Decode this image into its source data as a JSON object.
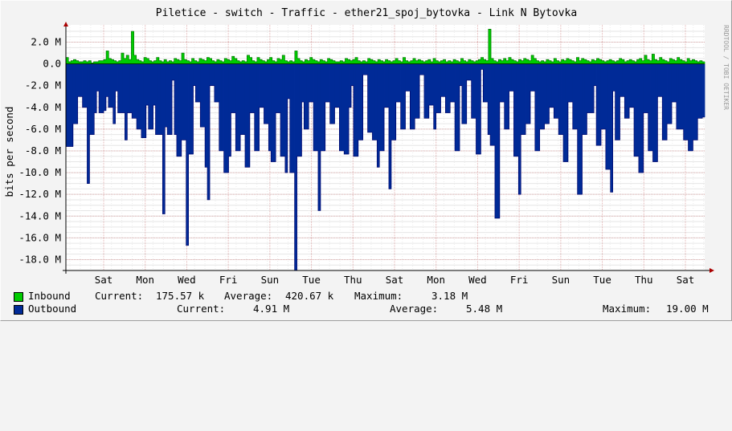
{
  "chart_data": {
    "type": "area",
    "title": "Piletice - switch - Traffic - ether21_spoj_bytovka - Link N Bytovka",
    "ylabel": "bits per second",
    "watermark": "RRDTOOL / TOBI OETIKER",
    "ylim": [
      -19000000,
      3000000
    ],
    "y_ticks": [
      {
        "value": 2000000,
        "label": "2.0 M"
      },
      {
        "value": 0,
        "label": "0.0"
      },
      {
        "value": -2000000,
        "label": "-2.0 M"
      },
      {
        "value": -4000000,
        "label": "-4.0 M"
      },
      {
        "value": -6000000,
        "label": "-6.0 M"
      },
      {
        "value": -8000000,
        "label": "-8.0 M"
      },
      {
        "value": -10000000,
        "label": "-10.0 M"
      },
      {
        "value": -12000000,
        "label": "-12.0 M"
      },
      {
        "value": -14000000,
        "label": "-14.0 M"
      },
      {
        "value": -16000000,
        "label": "-16.0 M"
      },
      {
        "value": -18000000,
        "label": "-18.0 M"
      }
    ],
    "x_ticks": [
      "Sat",
      "Mon",
      "Wed",
      "Fri",
      "Sun",
      "Tue",
      "Thu",
      "Sat",
      "Mon",
      "Wed",
      "Fri",
      "Sun",
      "Tue",
      "Thu",
      "Sat"
    ],
    "grid": true,
    "series": [
      {
        "name": "Inbound",
        "color": "#00cc00",
        "outline": "#006600",
        "values": [
          0.6,
          0.2,
          0.3,
          0.4,
          0.3,
          0.2,
          0.2,
          0.3,
          0.2,
          0.3,
          0.1,
          0.2,
          0.2,
          0.3,
          0.3,
          0.4,
          1.2,
          0.5,
          0.4,
          0.3,
          0.2,
          0.3,
          1.0,
          0.5,
          0.8,
          0.4,
          3.0,
          0.8,
          0.4,
          0.3,
          0.2,
          0.6,
          0.5,
          0.3,
          0.2,
          0.3,
          0.6,
          0.3,
          0.2,
          0.4,
          0.2,
          0.3,
          0.2,
          0.5,
          0.4,
          0.3,
          1.0,
          0.4,
          0.3,
          0.2,
          0.5,
          0.3,
          0.2,
          0.5,
          0.4,
          0.3,
          0.6,
          0.5,
          0.3,
          0.2,
          0.4,
          0.3,
          0.2,
          0.5,
          0.4,
          0.3,
          0.7,
          0.5,
          0.3,
          0.2,
          0.3,
          0.2,
          0.8,
          0.6,
          0.3,
          0.2,
          0.6,
          0.4,
          0.3,
          0.2,
          0.4,
          0.6,
          0.3,
          0.2,
          0.5,
          0.4,
          0.8,
          0.3,
          0.2,
          0.3,
          0.2,
          1.2,
          0.5,
          0.3,
          0.2,
          0.4,
          0.3,
          0.6,
          0.4,
          0.3,
          0.2,
          0.4,
          0.3,
          0.2,
          0.5,
          0.4,
          0.3,
          0.2,
          0.2,
          0.3,
          0.2,
          0.5,
          0.4,
          0.3,
          0.4,
          0.6,
          0.3,
          0.2,
          0.3,
          0.2,
          0.5,
          0.4,
          0.3,
          0.2,
          0.4,
          0.3,
          0.2,
          0.4,
          0.3,
          0.2,
          0.3,
          0.5,
          0.3,
          0.2,
          0.6,
          0.3,
          0.2,
          0.3,
          0.5,
          0.3,
          0.4,
          0.3,
          0.2,
          0.3,
          0.4,
          0.2,
          0.5,
          0.3,
          0.2,
          0.3,
          0.4,
          0.2,
          0.3,
          0.2,
          0.4,
          0.3,
          0.2,
          0.5,
          0.3,
          0.2,
          0.4,
          0.3,
          0.2,
          0.3,
          0.4,
          0.6,
          0.4,
          0.3,
          3.2,
          0.5,
          0.3,
          0.2,
          0.4,
          0.3,
          0.5,
          0.3,
          0.6,
          0.4,
          0.3,
          0.2,
          0.4,
          0.3,
          0.5,
          0.4,
          0.3,
          0.8,
          0.5,
          0.3,
          0.2,
          0.3,
          0.2,
          0.4,
          0.3,
          0.2,
          0.5,
          0.3,
          0.2,
          0.4,
          0.3,
          0.5,
          0.4,
          0.3,
          0.2,
          0.6,
          0.3,
          0.5,
          0.4,
          0.3,
          0.2,
          0.4,
          0.3,
          0.5,
          0.4,
          0.3,
          0.2,
          0.3,
          0.4,
          0.3,
          0.2,
          0.3,
          0.5,
          0.4,
          0.2,
          0.3,
          0.4,
          0.3,
          0.2,
          0.4,
          0.5,
          0.3,
          0.8,
          0.4,
          0.3,
          0.9,
          0.4,
          0.3,
          0.6,
          0.4,
          0.3,
          0.2,
          0.5,
          0.4,
          0.3,
          0.6,
          0.4,
          0.3,
          0.2,
          0.5,
          0.3,
          0.4,
          0.3,
          0.2,
          0.3,
          0.2
        ]
      },
      {
        "name": "Outbound",
        "color": "#002a97",
        "outline": "#000066",
        "values": [
          -7.6,
          -7.6,
          -7.6,
          -5.5,
          -5.5,
          -3.0,
          -3.0,
          -4.0,
          -4.0,
          -11.0,
          -6.5,
          -6.5,
          -4.5,
          -2.5,
          -4.5,
          -4.5,
          -4.3,
          -3.0,
          -4.0,
          -4.0,
          -5.5,
          -2.5,
          -4.5,
          -4.5,
          -4.5,
          -7.0,
          -4.5,
          -4.5,
          -5.0,
          -5.0,
          -6.0,
          -6.0,
          -6.8,
          -6.8,
          -3.8,
          -6.0,
          -6.0,
          -3.8,
          -6.5,
          -6.5,
          -6.5,
          -13.8,
          -5.8,
          -6.5,
          -6.5,
          -1.5,
          -6.5,
          -8.5,
          -8.5,
          -7.0,
          -7.0,
          -16.7,
          -8.3,
          -8.3,
          -2.0,
          -3.5,
          -3.5,
          -5.8,
          -5.8,
          -9.5,
          -12.5,
          -2.0,
          -2.0,
          -3.5,
          -3.5,
          -8.0,
          -8.0,
          -10.0,
          -10.0,
          -8.5,
          -4.5,
          -4.5,
          -8.0,
          -8.0,
          -6.5,
          -6.5,
          -9.5,
          -9.5,
          -4.5,
          -4.5,
          -8.0,
          -8.0,
          -4.0,
          -4.0,
          -5.5,
          -5.5,
          -8.0,
          -9.0,
          -9.0,
          -4.5,
          -4.5,
          -8.5,
          -8.5,
          -10.0,
          -3.2,
          -10.0,
          -10.0,
          -19.0,
          -8.5,
          -8.5,
          -3.5,
          -6.0,
          -6.0,
          -3.5,
          -3.5,
          -8.0,
          -8.0,
          -13.5,
          -8.0,
          -8.0,
          -3.5,
          -3.5,
          -5.5,
          -5.5,
          -4.0,
          -4.0,
          -8.0,
          -8.0,
          -8.3,
          -8.3,
          -4.0,
          -2.0,
          -8.5,
          -8.5,
          -7.0,
          -7.0,
          -1.0,
          -1.0,
          -6.3,
          -6.3,
          -7.0,
          -7.0,
          -9.5,
          -8.0,
          -8.0,
          -4.0,
          -4.0,
          -11.5,
          -7.0,
          -7.0,
          -3.5,
          -3.5,
          -6.0,
          -6.0,
          -2.5,
          -2.5,
          -6.0,
          -6.0,
          -5.0,
          -5.0,
          -1.0,
          -1.0,
          -5.0,
          -5.0,
          -3.8,
          -3.8,
          -6.0,
          -4.5,
          -4.5,
          -3.0,
          -3.0,
          -4.5,
          -4.5,
          -3.5,
          -3.5,
          -8.0,
          -8.0,
          -2.0,
          -5.5,
          -5.5,
          -1.5,
          -1.5,
          -5.0,
          -5.0,
          -8.3,
          -8.3,
          -0.5,
          -3.5,
          -3.5,
          -6.5,
          -7.5,
          -7.5,
          -14.2,
          -14.2,
          -3.5,
          -3.5,
          -6.0,
          -6.0,
          -2.5,
          -2.5,
          -8.5,
          -8.5,
          -12.0,
          -6.5,
          -6.5,
          -5.5,
          -5.5,
          -2.5,
          -2.5,
          -8.0,
          -8.0,
          -6.0,
          -6.0,
          -5.5,
          -5.5,
          -4.0,
          -4.0,
          -5.0,
          -5.0,
          -6.5,
          -6.5,
          -9.0,
          -9.0,
          -3.5,
          -3.5,
          -6.0,
          -6.0,
          -12.0,
          -12.0,
          -6.5,
          -6.5,
          -4.5,
          -4.5,
          -4.5,
          -2.0,
          -7.5,
          -7.5,
          -6.0,
          -6.0,
          -9.7,
          -9.7,
          -11.8,
          -2.5,
          -7.0,
          -7.0,
          -3.0,
          -3.0,
          -5.0,
          -5.0,
          -4.0,
          -4.0,
          -8.5,
          -8.5,
          -10.0,
          -10.0,
          -4.5,
          -4.5,
          -8.0,
          -8.0,
          -9.0,
          -9.0,
          -3.0,
          -3.0,
          -7.0,
          -7.0,
          -5.5,
          -5.5,
          -3.5,
          -3.5,
          -6.0,
          -6.0,
          -6.0,
          -7.0,
          -7.0,
          -8.0,
          -8.0,
          -7.0,
          -7.0,
          -5.0,
          -5.0,
          -4.9
        ]
      }
    ]
  },
  "legend": {
    "inbound": {
      "name": "Inbound",
      "color": "#00cc00",
      "current_label": "Current:",
      "current": "175.57 k",
      "average_label": "Average:",
      "average": "420.67 k",
      "maximum_label": "Maximum:",
      "maximum": "3.18 M"
    },
    "outbound": {
      "name": "Outbound",
      "color": "#002a97",
      "current_label": "Current:",
      "current": "4.91 M",
      "average_label": "Average:",
      "average": "5.48 M",
      "maximum_label": "Maximum:",
      "maximum": "19.00 M"
    }
  }
}
